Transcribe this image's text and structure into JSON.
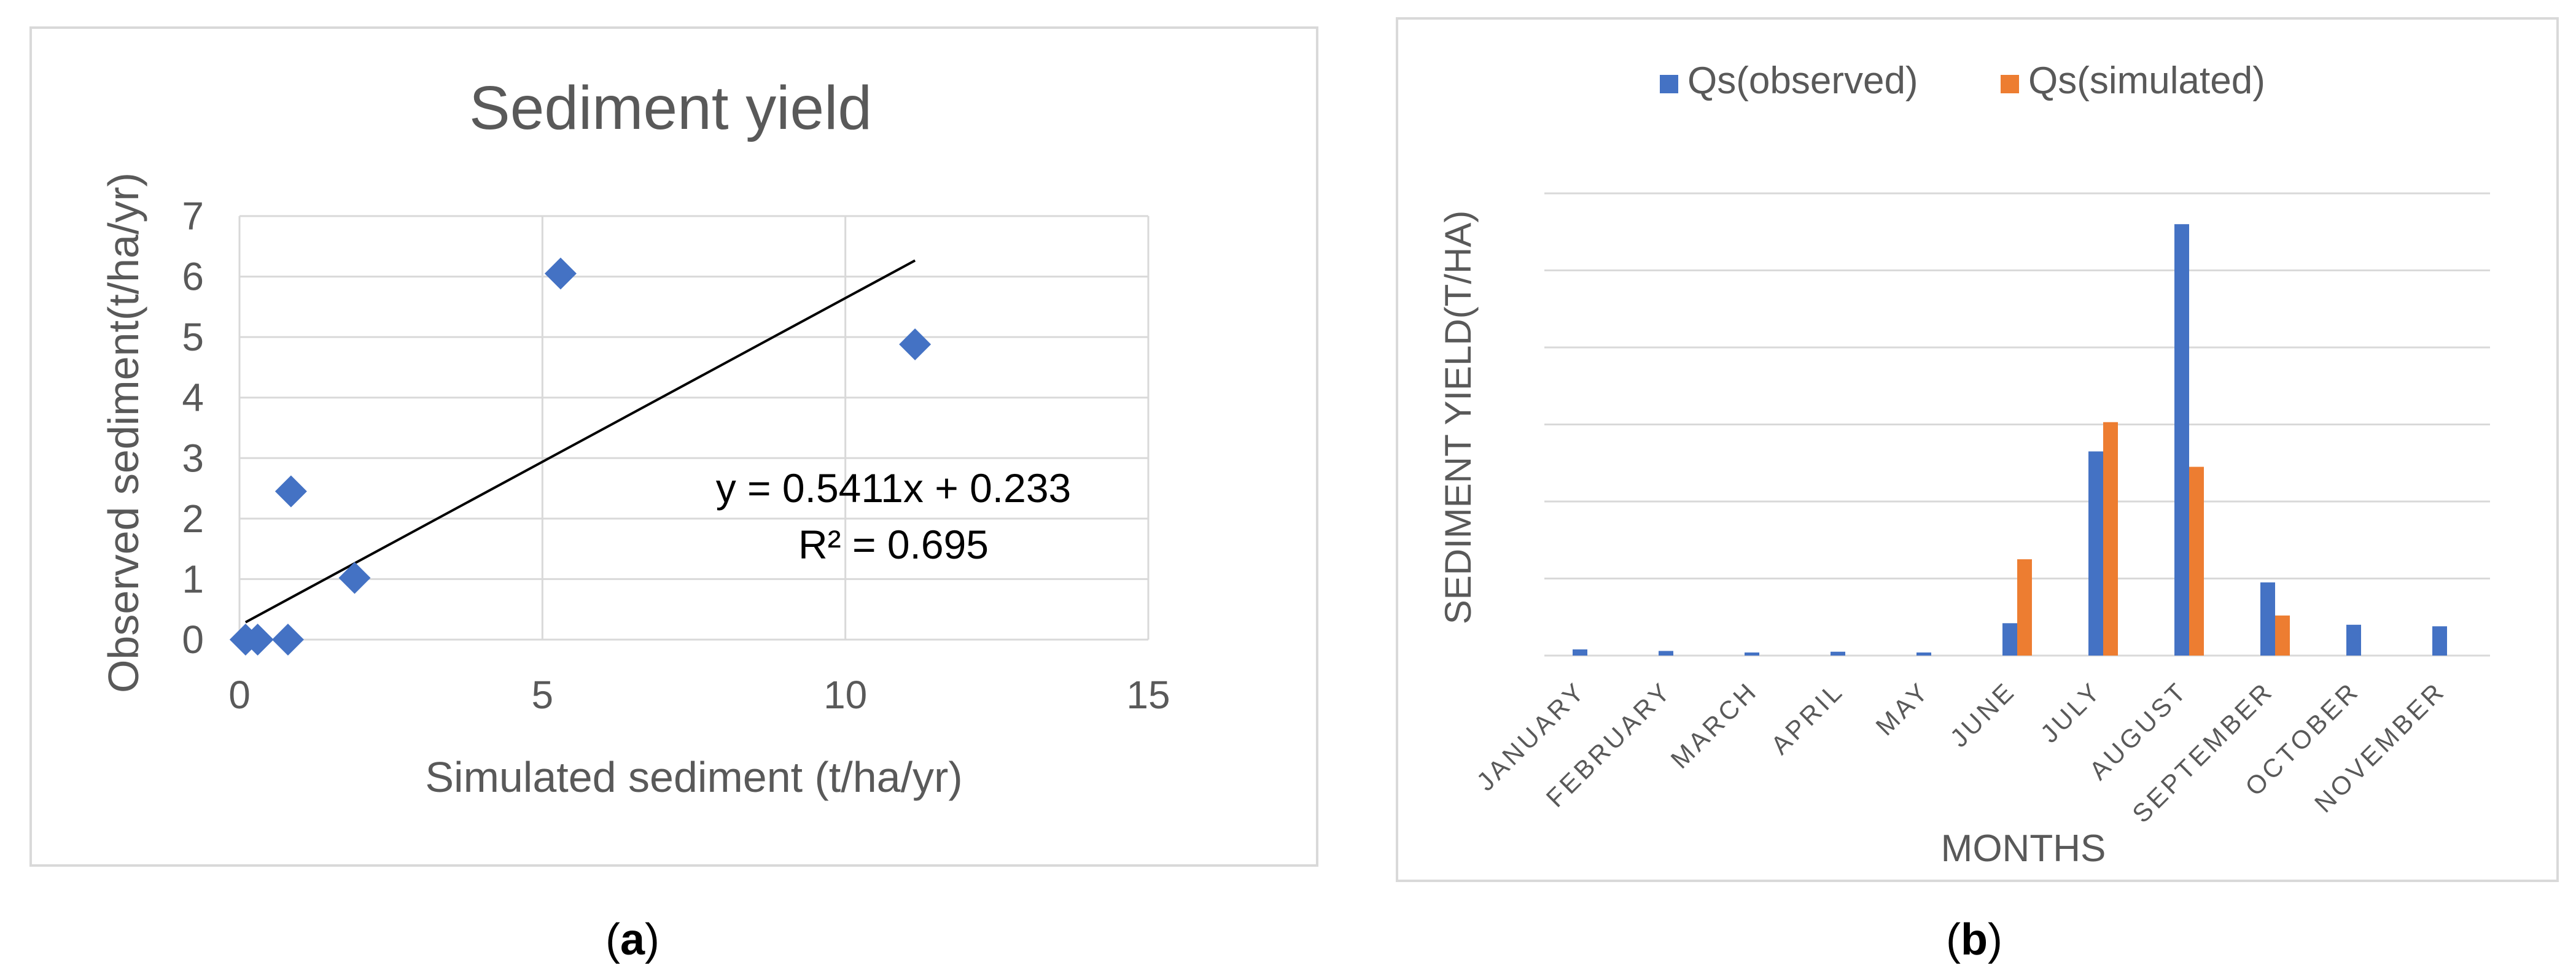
{
  "colors": {
    "series_observed": "#4472C4",
    "series_simulated": "#ED7D31",
    "axis_text": "#595959",
    "grid": "#d9d9d9",
    "panel_border": "#d9d9d9",
    "trendline": "#000000"
  },
  "panels": [
    {
      "id": "a",
      "caption_letter": "a"
    },
    {
      "id": "b",
      "caption_letter": "b"
    }
  ],
  "chart_data": [
    {
      "type": "scatter",
      "title": "Sediment yield",
      "xlabel": "Simulated sediment (t/ha/yr)",
      "ylabel": "Observed sediment(t/ha/yr)",
      "xlim": [
        0,
        15
      ],
      "ylim": [
        0,
        7
      ],
      "xticks": [
        0,
        5,
        10,
        15
      ],
      "yticks": [
        0,
        1,
        2,
        3,
        4,
        5,
        6,
        7
      ],
      "grid": true,
      "marker": "diamond",
      "points": [
        {
          "x": 0.1,
          "y": 0.0
        },
        {
          "x": 0.3,
          "y": 0.0
        },
        {
          "x": 0.8,
          "y": 0.0
        },
        {
          "x": 0.85,
          "y": 2.45
        },
        {
          "x": 1.9,
          "y": 1.02
        },
        {
          "x": 5.3,
          "y": 6.05
        },
        {
          "x": 11.15,
          "y": 4.88
        }
      ],
      "trendline": {
        "type": "linear",
        "slope": 0.5411,
        "intercept": 0.233,
        "x_range": [
          0.1,
          11.15
        ],
        "equation_label": "y = 0.5411x + 0.233",
        "r2_label": "R² = 0.695"
      }
    },
    {
      "type": "bar",
      "title": "",
      "xlabel": "MONTHS",
      "ylabel": "SEDIMENT YIELD(T/HA)",
      "categories": [
        "JANUARY",
        "FEBRUARY",
        "MARCH",
        "APRIL",
        "MAY",
        "JUNE",
        "JULY",
        "AUGUST",
        "SEPTEMBER",
        "OCTOBER",
        "NOVEMBER"
      ],
      "ylim": [
        0,
        6
      ],
      "y_tick_labels_shown": false,
      "grid": true,
      "legend_position": "top",
      "series": [
        {
          "name": "Qs(observed)",
          "values": [
            0.08,
            0.06,
            0.04,
            0.05,
            0.04,
            0.42,
            2.65,
            5.6,
            0.95,
            0.4,
            0.38
          ]
        },
        {
          "name": "Qs(simulated)",
          "values": [
            0,
            0,
            0,
            0,
            0,
            1.25,
            3.03,
            2.45,
            0.52,
            0,
            0
          ]
        }
      ]
    }
  ]
}
